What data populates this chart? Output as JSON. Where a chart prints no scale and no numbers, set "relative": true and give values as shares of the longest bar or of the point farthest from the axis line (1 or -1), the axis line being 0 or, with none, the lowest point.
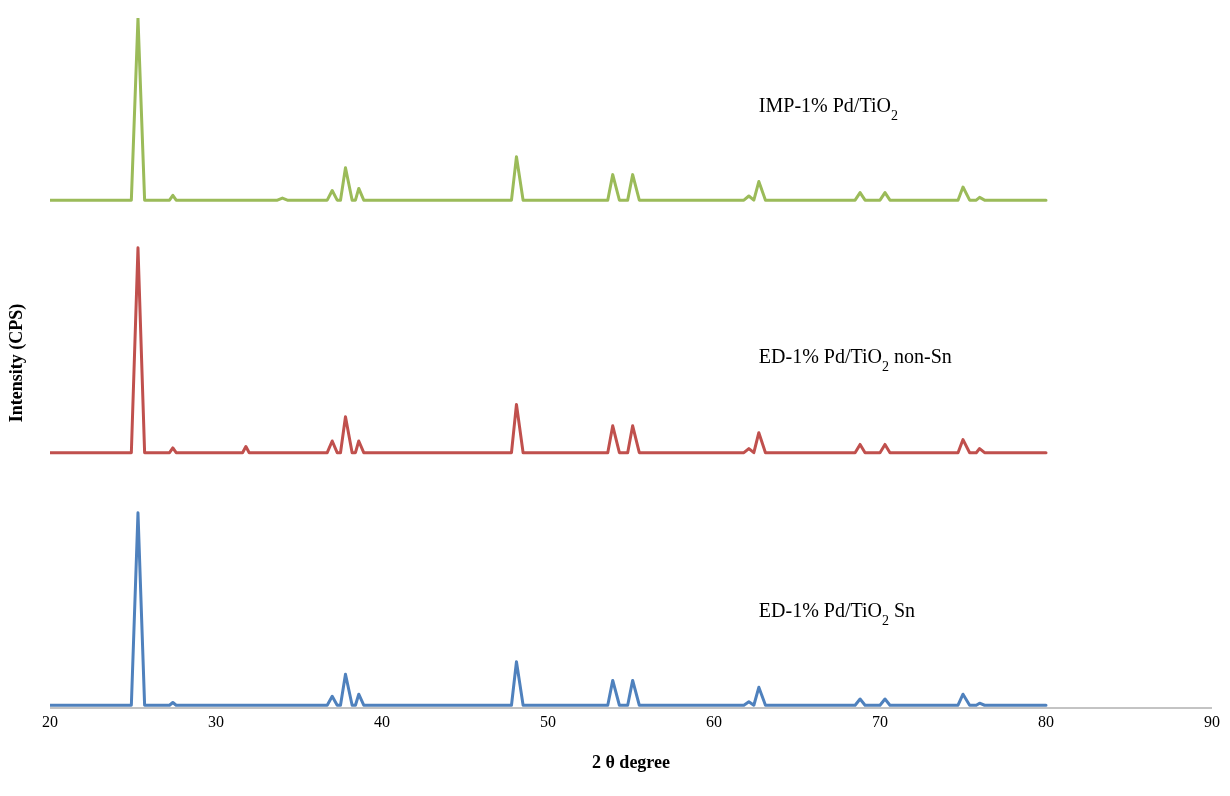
{
  "chart_data": {
    "type": "line",
    "xlabel": "2 θ degree",
    "ylabel": "Intensity (CPS)",
    "relative": true,
    "legend": false,
    "grid": false,
    "marker": "none",
    "line_style": "solid",
    "xlim": [
      20,
      90
    ],
    "xticks": [
      20,
      30,
      40,
      50,
      60,
      70,
      80,
      90
    ],
    "x": [
      20,
      24.9,
      25.3,
      25.7,
      27.2,
      27.4,
      27.6,
      31.6,
      31.8,
      32.0,
      33.7,
      34.0,
      34.3,
      36.7,
      37.0,
      37.3,
      37.5,
      37.8,
      38.2,
      38.4,
      38.6,
      38.9,
      47.8,
      48.1,
      48.5,
      53.6,
      53.9,
      54.3,
      54.8,
      55.1,
      55.5,
      61.8,
      62.1,
      62.4,
      62.7,
      63.1,
      68.5,
      68.8,
      69.1,
      70.0,
      70.3,
      70.6,
      74.7,
      75.0,
      75.4,
      75.8,
      76.0,
      76.3,
      80
    ],
    "series": [
      {
        "name": "IMP-1% Pd/TiO$_{2}$",
        "color": "#9bbb59",
        "values": [
          0.736,
          0.736,
          1.0,
          0.736,
          0.736,
          0.743,
          0.736,
          0.736,
          0.736,
          0.736,
          0.736,
          0.739,
          0.736,
          0.736,
          0.75,
          0.736,
          0.736,
          0.783,
          0.736,
          0.736,
          0.753,
          0.736,
          0.736,
          0.799,
          0.736,
          0.736,
          0.773,
          0.736,
          0.736,
          0.773,
          0.736,
          0.736,
          0.742,
          0.736,
          0.763,
          0.736,
          0.736,
          0.747,
          0.736,
          0.736,
          0.747,
          0.736,
          0.736,
          0.755,
          0.736,
          0.736,
          0.74,
          0.736,
          0.736
        ]
      },
      {
        "name": "ED-1% Pd/TiO$_{2}$ non-Sn",
        "color": "#c0504d",
        "values": [
          0.37,
          0.37,
          0.667,
          0.37,
          0.37,
          0.377,
          0.37,
          0.37,
          0.379,
          0.37,
          0.37,
          0.37,
          0.37,
          0.37,
          0.387,
          0.37,
          0.37,
          0.422,
          0.37,
          0.37,
          0.387,
          0.37,
          0.37,
          0.44,
          0.37,
          0.37,
          0.409,
          0.37,
          0.37,
          0.409,
          0.37,
          0.37,
          0.376,
          0.37,
          0.399,
          0.37,
          0.37,
          0.382,
          0.37,
          0.37,
          0.382,
          0.37,
          0.37,
          0.389,
          0.37,
          0.37,
          0.376,
          0.37,
          0.37
        ]
      },
      {
        "name": "ED-1% Pd/TiO$_{2}$ Sn",
        "color": "#4f81bd",
        "values": [
          0.004,
          0.004,
          0.283,
          0.004,
          0.004,
          0.008,
          0.004,
          0.004,
          0.004,
          0.004,
          0.004,
          0.004,
          0.004,
          0.004,
          0.017,
          0.004,
          0.004,
          0.049,
          0.004,
          0.004,
          0.02,
          0.004,
          0.004,
          0.067,
          0.004,
          0.004,
          0.04,
          0.004,
          0.004,
          0.04,
          0.004,
          0.004,
          0.009,
          0.004,
          0.03,
          0.004,
          0.004,
          0.013,
          0.004,
          0.004,
          0.013,
          0.004,
          0.004,
          0.02,
          0.004,
          0.004,
          0.007,
          0.004,
          0.004
        ]
      }
    ]
  }
}
